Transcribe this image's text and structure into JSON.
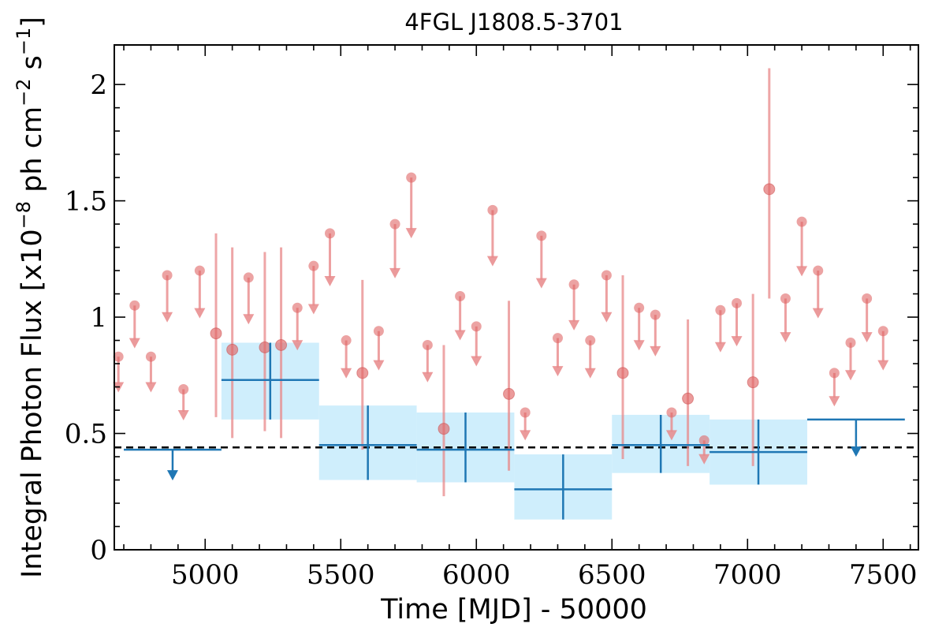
{
  "chart_data": {
    "type": "scatter",
    "title": "4FGL J1808.5-3701",
    "xlabel": "Time [MJD] - 50000",
    "ylabel": "Integral Photon Flux [x10",
    "ylabel_exp1": "−8",
    "ylabel_mid": " ph cm",
    "ylabel_exp2": "−2",
    "ylabel_mid2": " s",
    "ylabel_exp3": "−1",
    "ylabel_end": "]",
    "xlim": [
      4665,
      7630
    ],
    "ylim": [
      0,
      2.17
    ],
    "xticks": [
      5000,
      5500,
      6000,
      6500,
      7000,
      7500
    ],
    "xtick_labels": [
      "5000",
      "5500",
      "6000",
      "6500",
      "7000",
      "7500"
    ],
    "yticks": [
      0,
      0.5,
      1,
      1.5,
      2
    ],
    "ytick_labels": [
      "0",
      "0.5",
      "1",
      "1.5",
      "2"
    ],
    "reference_line": 0.44,
    "colors": {
      "fine": "#e8888a",
      "fine_fill": "#e06666",
      "coarse": "#1f77b4",
      "band": "#cfeefc",
      "reference": "#000000"
    },
    "fine_bins": [
      {
        "x": 4680,
        "y": 0.83,
        "ul": true
      },
      {
        "x": 4740,
        "y": 1.05,
        "ul": true
      },
      {
        "x": 4800,
        "y": 0.83,
        "ul": true
      },
      {
        "x": 4860,
        "y": 1.18,
        "ul": true
      },
      {
        "x": 4920,
        "y": 0.69,
        "ul": true
      },
      {
        "x": 4980,
        "y": 1.2,
        "ul": true
      },
      {
        "x": 5040,
        "y": 0.93,
        "lo": 0.57,
        "hi": 1.36
      },
      {
        "x": 5100,
        "y": 0.86,
        "lo": 0.48,
        "hi": 1.3
      },
      {
        "x": 5160,
        "y": 1.17,
        "ul": true
      },
      {
        "x": 5220,
        "y": 0.87,
        "lo": 0.51,
        "hi": 1.28
      },
      {
        "x": 5280,
        "y": 0.88,
        "lo": 0.48,
        "hi": 1.3
      },
      {
        "x": 5340,
        "y": 1.04,
        "ul": true
      },
      {
        "x": 5400,
        "y": 1.22,
        "ul": true
      },
      {
        "x": 5460,
        "y": 1.36,
        "ul": true
      },
      {
        "x": 5520,
        "y": 0.9,
        "ul": true
      },
      {
        "x": 5580,
        "y": 0.76,
        "lo": 0.43,
        "hi": 1.16
      },
      {
        "x": 5640,
        "y": 0.94,
        "ul": true
      },
      {
        "x": 5700,
        "y": 1.4,
        "ul": true
      },
      {
        "x": 5760,
        "y": 1.6,
        "ul": true
      },
      {
        "x": 5820,
        "y": 0.88,
        "ul": true
      },
      {
        "x": 5880,
        "y": 0.52,
        "lo": 0.23,
        "hi": 0.88
      },
      {
        "x": 5940,
        "y": 1.09,
        "ul": true
      },
      {
        "x": 6000,
        "y": 0.96,
        "ul": true
      },
      {
        "x": 6060,
        "y": 1.46,
        "ul": true
      },
      {
        "x": 6120,
        "y": 0.67,
        "lo": 0.34,
        "hi": 1.07
      },
      {
        "x": 6180,
        "y": 0.59,
        "ul": true
      },
      {
        "x": 6240,
        "y": 1.35,
        "ul": true
      },
      {
        "x": 6300,
        "y": 0.91,
        "ul": true
      },
      {
        "x": 6360,
        "y": 1.14,
        "ul": true
      },
      {
        "x": 6420,
        "y": 0.9,
        "ul": true
      },
      {
        "x": 6480,
        "y": 1.18,
        "ul": true
      },
      {
        "x": 6540,
        "y": 0.76,
        "lo": 0.39,
        "hi": 1.18
      },
      {
        "x": 6600,
        "y": 1.04,
        "ul": true
      },
      {
        "x": 6660,
        "y": 1.01,
        "ul": true
      },
      {
        "x": 6720,
        "y": 0.59,
        "ul": true
      },
      {
        "x": 6780,
        "y": 0.65,
        "lo": 0.36,
        "hi": 0.99
      },
      {
        "x": 6840,
        "y": 0.47,
        "ul": true
      },
      {
        "x": 6900,
        "y": 1.03,
        "ul": true
      },
      {
        "x": 6960,
        "y": 1.06,
        "ul": true
      },
      {
        "x": 7020,
        "y": 0.72,
        "lo": 0.36,
        "hi": 1.1
      },
      {
        "x": 7080,
        "y": 1.55,
        "lo": 1.08,
        "hi": 2.07
      },
      {
        "x": 7140,
        "y": 1.08,
        "ul": true
      },
      {
        "x": 7200,
        "y": 1.41,
        "ul": true
      },
      {
        "x": 7260,
        "y": 1.2,
        "ul": true
      },
      {
        "x": 7320,
        "y": 0.76,
        "ul": true
      },
      {
        "x": 7380,
        "y": 0.89,
        "ul": true
      },
      {
        "x": 7440,
        "y": 1.08,
        "ul": true
      },
      {
        "x": 7500,
        "y": 0.94,
        "ul": true
      }
    ],
    "coarse_bins": [
      {
        "x0": 4700,
        "x1": 5060,
        "y": 0.43,
        "ul": true
      },
      {
        "x0": 5060,
        "x1": 5420,
        "y": 0.73,
        "lo": 0.56,
        "hi": 0.89
      },
      {
        "x0": 5420,
        "x1": 5780,
        "y": 0.45,
        "lo": 0.3,
        "hi": 0.62
      },
      {
        "x0": 5780,
        "x1": 6140,
        "y": 0.43,
        "lo": 0.29,
        "hi": 0.59
      },
      {
        "x0": 6140,
        "x1": 6500,
        "y": 0.26,
        "lo": 0.13,
        "hi": 0.41
      },
      {
        "x0": 6500,
        "x1": 6860,
        "y": 0.45,
        "lo": 0.33,
        "hi": 0.58
      },
      {
        "x0": 6860,
        "x1": 7220,
        "y": 0.42,
        "lo": 0.28,
        "hi": 0.56
      },
      {
        "x0": 7220,
        "x1": 7580,
        "y": 0.56,
        "ul": true
      }
    ]
  }
}
